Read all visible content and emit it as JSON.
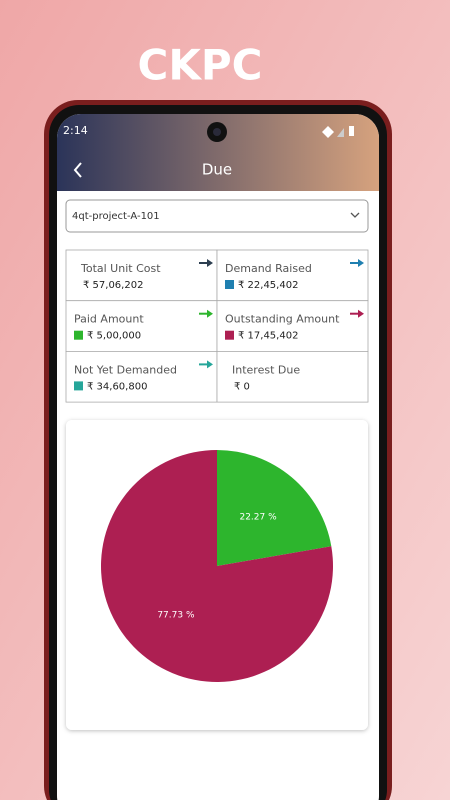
{
  "banner": "CKPC",
  "status_bar": {
    "time": "2:14"
  },
  "app_bar": {
    "title": "Due"
  },
  "dropdown": {
    "selected": "4qt-project-A-101"
  },
  "summary": [
    {
      "label": "Total Unit Cost",
      "value": "₹ 57,06,202",
      "arrow_color": "#2c3e50"
    },
    {
      "label": "Demand Raised",
      "value": "₹ 22,45,402",
      "arrow_color": "#1f7fb0",
      "swatch_color": "#1f7fb0"
    },
    {
      "label": "Paid Amount",
      "value": "₹ 5,00,000",
      "arrow_color": "#2db52d",
      "swatch_color": "#2db52d"
    },
    {
      "label": "Outstanding Amount",
      "value": "₹ 17,45,402",
      "arrow_color": "#ad1f52",
      "swatch_color": "#ad1f52"
    },
    {
      "label": "Not Yet Demanded",
      "value": "₹ 34,60,800",
      "arrow_color": "#26a69a",
      "swatch_color": "#26a69a"
    },
    {
      "label": "Interest Due",
      "value": "₹ 0"
    }
  ],
  "chart_data": {
    "type": "pie",
    "values": [
      22.27,
      77.73
    ],
    "value_labels": [
      "22.27 %",
      "77.73 %"
    ],
    "colors": [
      "#2db52d",
      "#ad1f52"
    ]
  }
}
